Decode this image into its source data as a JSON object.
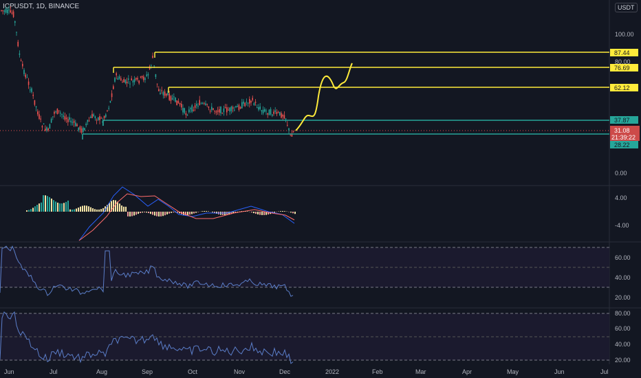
{
  "header": {
    "symbol_line": "ICPUSDT, 1D, BINANCE",
    "currency_button": "USDT"
  },
  "price_axis": {
    "ticks": [
      "100.00",
      "80.00",
      "0.00"
    ]
  },
  "levels": [
    {
      "label": "87.44",
      "color": "#ffeb3b"
    },
    {
      "label": "76.69",
      "color": "#ffeb3b"
    },
    {
      "label": "62.12",
      "color": "#ffeb3b"
    },
    {
      "label": "37.87",
      "color": "#26a69a"
    },
    {
      "label": "28.22",
      "color": "#26a69a"
    }
  ],
  "current_price": {
    "value": "31.08",
    "countdown": "21:39:22",
    "color": "#ef5350"
  },
  "macd_axis": {
    "ticks": [
      "4.00",
      "-4.00"
    ]
  },
  "rsi1_axis": {
    "ticks": [
      "60.00",
      "40.00",
      "20.00"
    ]
  },
  "rsi2_axis": {
    "ticks": [
      "80.00",
      "60.00",
      "40.00",
      "20.00"
    ]
  },
  "time_axis": {
    "labels": [
      "Jun",
      "Jul",
      "Aug",
      "Sep",
      "Oct",
      "Nov",
      "Dec",
      "2022",
      "Feb",
      "Mar",
      "Apr",
      "May",
      "Jun",
      "Jul"
    ]
  },
  "colors": {
    "background": "#131722",
    "up_candle": "#26a69a",
    "down_candle": "#ef5350",
    "drawing": "#ffeb3b",
    "rsi_line": "#5b7ec9"
  }
}
